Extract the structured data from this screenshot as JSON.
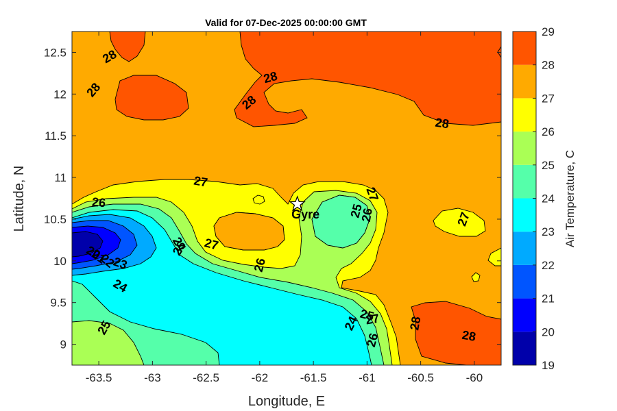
{
  "chart_data": {
    "type": "heatmap",
    "subtype": "filled-contour",
    "title": "Valid for 07-Dec-2025 00:00:00 GMT",
    "xlabel": "Longitude, E",
    "ylabel": "Latitude, N",
    "xlim": [
      -63.75,
      -59.75
    ],
    "ylim": [
      8.75,
      12.75
    ],
    "xticks": [
      -63.5,
      -63,
      -62.5,
      -62,
      -61.5,
      -61,
      -60.5,
      -60
    ],
    "xtick_labels": [
      "-63.5",
      "-63",
      "-62.5",
      "-62",
      "-61.5",
      "-61",
      "-60.5",
      "-60"
    ],
    "yticks": [
      9,
      9.5,
      10,
      10.5,
      11,
      11.5,
      12,
      12.5
    ],
    "ytick_labels": [
      "9",
      "9.5",
      "10",
      "10.5",
      "11",
      "11.5",
      "12",
      "12.5"
    ],
    "colorbar": {
      "label": "Air Temperature, C",
      "levels": [
        19,
        20,
        21,
        22,
        23,
        24,
        25,
        26,
        27,
        28,
        29
      ],
      "tick_labels": [
        "19",
        "20",
        "21",
        "22",
        "23",
        "24",
        "25",
        "26",
        "27",
        "28",
        "29"
      ],
      "colors": [
        "#0000aa",
        "#0000ff",
        "#0055ff",
        "#00aaff",
        "#00ffff",
        "#55ffaa",
        "#aaff55",
        "#ffff00",
        "#ffaa00",
        "#ff5500",
        "#ff0000"
      ]
    },
    "contour_labels": [
      {
        "text": "28",
        "lon": -63.4,
        "lat": 12.45
      },
      {
        "text": "28",
        "lon": -63.55,
        "lat": 12.05
      },
      {
        "text": "28",
        "lon": -61.9,
        "lat": 12.2
      },
      {
        "text": "28",
        "lon": -62.1,
        "lat": 11.9
      },
      {
        "text": "28",
        "lon": -60.3,
        "lat": 11.65
      },
      {
        "text": "28",
        "lon": -60.55,
        "lat": 9.25
      },
      {
        "text": "28",
        "lon": -60.05,
        "lat": 9.1
      },
      {
        "text": "27",
        "lon": -62.55,
        "lat": 10.95
      },
      {
        "text": "27",
        "lon": -62.45,
        "lat": 10.2
      },
      {
        "text": "27",
        "lon": -60.95,
        "lat": 10.8
      },
      {
        "text": "27",
        "lon": -60.1,
        "lat": 10.5
      },
      {
        "text": "27",
        "lon": -60.95,
        "lat": 9.3
      },
      {
        "text": "26",
        "lon": -63.5,
        "lat": 10.7
      },
      {
        "text": "26",
        "lon": -62.0,
        "lat": 9.95
      },
      {
        "text": "26",
        "lon": -61.0,
        "lat": 10.55
      },
      {
        "text": "26",
        "lon": -60.95,
        "lat": 9.05
      },
      {
        "text": "25",
        "lon": -61.1,
        "lat": 10.6
      },
      {
        "text": "25",
        "lon": -61.0,
        "lat": 9.35
      },
      {
        "text": "25",
        "lon": -63.45,
        "lat": 9.2
      },
      {
        "text": "25",
        "lon": -62.75,
        "lat": 10.15
      },
      {
        "text": "24",
        "lon": -62.75,
        "lat": 10.2
      },
      {
        "text": "24",
        "lon": -61.15,
        "lat": 9.25
      },
      {
        "text": "24",
        "lon": -63.3,
        "lat": 9.7
      },
      {
        "text": "23",
        "lon": -63.3,
        "lat": 9.97
      },
      {
        "text": "22",
        "lon": -63.42,
        "lat": 10.0
      },
      {
        "text": "21",
        "lon": -63.5,
        "lat": 10.05
      },
      {
        "text": "20",
        "lon": -63.55,
        "lat": 10.1
      }
    ],
    "stations": [
      {
        "name": "Gyre",
        "lon": -61.65,
        "lat": 10.68
      }
    ]
  }
}
